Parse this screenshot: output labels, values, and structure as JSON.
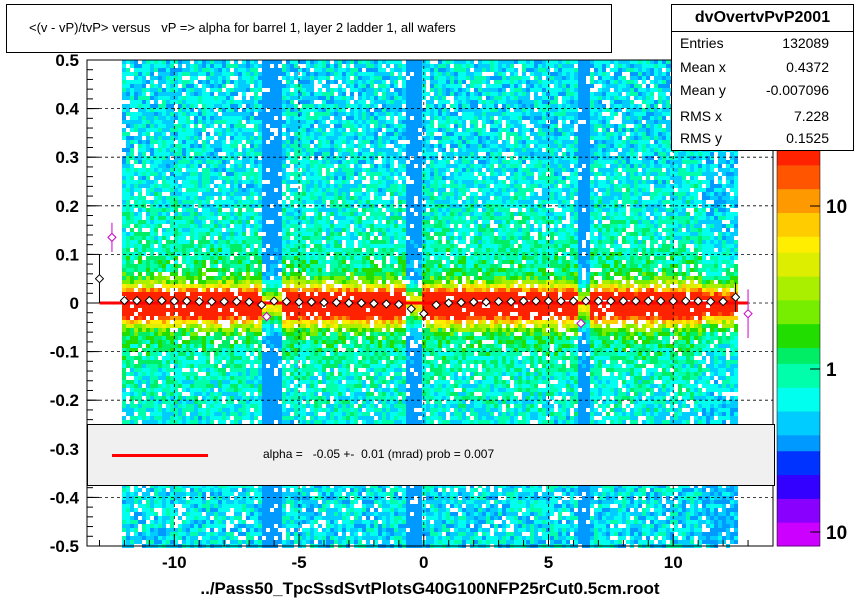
{
  "chart_data": {
    "type": "scatter",
    "title": "<(v - vP)/tvP> versus   vP => alpha for barrel 1, layer 2 ladder 1, all wafers",
    "xlabel": "../Pass50_TpcSsdSvtPlotsG40G100NFP25rCut0.5cm.root",
    "ylabel": "",
    "xlim": [
      -13.5,
      14
    ],
    "ylim": [
      -0.5,
      0.5
    ],
    "x_ticks": [
      -10,
      -5,
      0,
      5,
      10
    ],
    "y_ticks": [
      0.5,
      0.4,
      0.3,
      0.2,
      0.1,
      0,
      -0.1,
      -0.2,
      -0.3,
      -0.4,
      -0.5
    ],
    "x_tick_labels": [
      "-10",
      "-5",
      "0",
      "5",
      "10"
    ],
    "y_tick_labels": [
      "0.5",
      "0.4",
      "0.3",
      "0.2",
      "0.1",
      "0",
      "-0.1",
      "-0.2",
      "-0.3",
      "-0.4",
      "-0.5"
    ],
    "colorbar_labels": [
      "10",
      "1",
      "10"
    ],
    "grid": true,
    "profile": {
      "name": "profile points",
      "x": [
        -13.0,
        -12.5,
        -12.0,
        -11.5,
        -11.0,
        -10.5,
        -10.0,
        -9.5,
        -9.0,
        -8.5,
        -8.0,
        -7.5,
        -7.0,
        -6.5,
        -6.3,
        -6.0,
        -5.5,
        -5.0,
        -4.5,
        -4.0,
        -3.5,
        -3.0,
        -2.5,
        -2.0,
        -1.5,
        -1.0,
        -0.5,
        0.0,
        0.5,
        1.0,
        1.5,
        2.0,
        2.5,
        3.0,
        3.5,
        4.0,
        4.5,
        5.0,
        5.5,
        6.0,
        6.3,
        6.5,
        7.0,
        7.5,
        8.0,
        8.5,
        9.0,
        9.5,
        10.0,
        10.5,
        11.0,
        11.5,
        12.0,
        12.5,
        13.0
      ],
      "y": [
        0.05,
        0.135,
        0.005,
        0.005,
        0.005,
        0.005,
        0.004,
        0.004,
        0.003,
        0.003,
        0.003,
        0.003,
        0.002,
        -0.004,
        -0.028,
        0.004,
        0.003,
        0.002,
        0.002,
        0.001,
        0.001,
        0.0,
        0.0,
        -0.001,
        -0.002,
        -0.003,
        -0.012,
        -0.022,
        -0.004,
        0.0,
        0.001,
        0.002,
        0.002,
        0.003,
        0.003,
        0.004,
        0.004,
        0.004,
        0.004,
        0.004,
        -0.042,
        0.004,
        0.004,
        0.004,
        0.004,
        0.004,
        0.004,
        0.004,
        0.004,
        0.004,
        0.004,
        0.003,
        0.003,
        0.012,
        -0.022
      ],
      "yerr": [
        0.05,
        0.03,
        0.004,
        0.004,
        0.004,
        0.004,
        0.004,
        0.004,
        0.004,
        0.004,
        0.004,
        0.004,
        0.004,
        0.006,
        0.01,
        0.004,
        0.004,
        0.004,
        0.004,
        0.004,
        0.004,
        0.004,
        0.004,
        0.004,
        0.004,
        0.004,
        0.006,
        0.01,
        0.004,
        0.004,
        0.004,
        0.004,
        0.004,
        0.004,
        0.004,
        0.004,
        0.004,
        0.004,
        0.004,
        0.004,
        0.01,
        0.004,
        0.004,
        0.004,
        0.004,
        0.004,
        0.004,
        0.004,
        0.004,
        0.004,
        0.004,
        0.004,
        0.006,
        0.03,
        0.05
      ]
    },
    "fit": {
      "name": "alpha",
      "x": [
        -13.0,
        13.0
      ],
      "y": [
        0.0,
        0.0
      ],
      "color": "#ff0000"
    },
    "stats": {
      "name": "dvOvertvPvP2001",
      "rows": [
        {
          "key": "Entries",
          "value": "132089"
        },
        {
          "key": "Mean x",
          "value": "0.4372"
        },
        {
          "key": "Mean y",
          "value": "-0.007096"
        },
        {
          "key": "RMS x",
          "value": "7.228"
        },
        {
          "key": "RMS y",
          "value": "0.1525"
        }
      ]
    },
    "legend": {
      "placement": "bottom",
      "text": "alpha =   -0.05 +-  0.01 (mrad) prob = 0.007"
    }
  }
}
